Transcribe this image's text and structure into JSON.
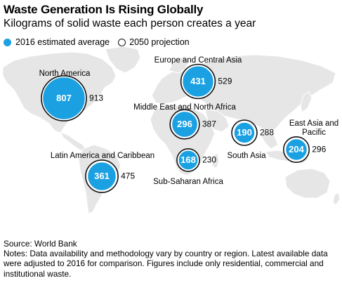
{
  "title": "Waste Generation Is Rising Globally",
  "subtitle": "Kilograms of solid waste each person creates a year",
  "colors": {
    "accent": "#1ba1e2",
    "map": "#e6e6e6",
    "ring": "#111111",
    "text": "#000000"
  },
  "chart_data": {
    "type": "scatter",
    "title": "Waste Generation Is Rising Globally",
    "subtitle": "Kilograms of solid waste each person creates a year",
    "unit": "kg per person per year",
    "series": [
      {
        "name": "2016 estimated average",
        "style": "filled circle"
      },
      {
        "name": "2050 projection",
        "style": "outline circle"
      }
    ],
    "regions": [
      {
        "name": "North America",
        "value_2016": 807,
        "value_2050": 913,
        "map_area": "north-america"
      },
      {
        "name": "Europe and Central Asia",
        "value_2016": 431,
        "value_2050": 529,
        "map_area": "europe"
      },
      {
        "name": "Middle East and North Africa",
        "value_2016": 296,
        "value_2050": 387,
        "map_area": "north-africa"
      },
      {
        "name": "South Asia",
        "value_2016": 190,
        "value_2050": 288,
        "map_area": "south-asia"
      },
      {
        "name": "East Asia and Pacific",
        "value_2016": 204,
        "value_2050": 296,
        "map_area": "east-asia"
      },
      {
        "name": "Latin America and Caribbean",
        "value_2016": 361,
        "value_2050": 475,
        "map_area": "south-america"
      },
      {
        "name": "Sub-Saharan Africa",
        "value_2016": 168,
        "value_2050": 230,
        "map_area": "central-africa"
      }
    ]
  },
  "footer": {
    "source": "Source: World Bank",
    "notes": "Notes: Data availability and methodology vary by country or region. Latest available data were adjusted to 2016 for comparison. Figures include only residential, commercial and institutional waste."
  }
}
